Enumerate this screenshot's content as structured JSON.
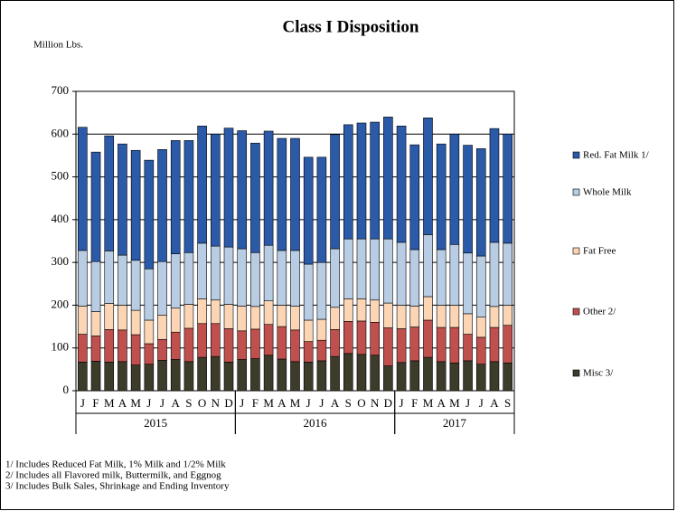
{
  "chart_data": {
    "type": "stacked-bar",
    "title": "Class I Disposition",
    "y_label": "Million Lbs.",
    "groups": [
      {
        "label": "2015",
        "categories": [
          "J",
          "F",
          "M",
          "A",
          "M",
          "J",
          "J",
          "A",
          "S",
          "O",
          "N",
          "D"
        ]
      },
      {
        "label": "2016",
        "categories": [
          "J",
          "F",
          "M",
          "A",
          "M",
          "J",
          "J",
          "A",
          "S",
          "O",
          "N",
          "D"
        ]
      },
      {
        "label": "2017",
        "categories": [
          "J",
          "F",
          "M",
          "A",
          "M",
          "J",
          "J",
          "A",
          "S"
        ]
      }
    ],
    "series": [
      {
        "name": "Misc 3/",
        "color": "#3d3b2a",
        "values": [
          67,
          69,
          67,
          68,
          60,
          62,
          71,
          73,
          68,
          78,
          80,
          67,
          73,
          75,
          83,
          74,
          68,
          67,
          70,
          80,
          87,
          85,
          83,
          58,
          66,
          70,
          78,
          68,
          65,
          70,
          62,
          68,
          65
        ]
      },
      {
        "name": "Other 2/",
        "color": "#c0504d",
        "values": [
          65,
          59,
          76,
          74,
          71,
          48,
          49,
          64,
          78,
          79,
          77,
          78,
          67,
          69,
          72,
          76,
          74,
          48,
          48,
          63,
          75,
          78,
          77,
          89,
          79,
          79,
          87,
          80,
          83,
          62,
          63,
          80,
          88
        ]
      },
      {
        "name": "Fat Free",
        "color": "#fcd5b4",
        "values": [
          66,
          57,
          61,
          58,
          57,
          55,
          57,
          56,
          56,
          58,
          55,
          57,
          58,
          53,
          55,
          50,
          56,
          50,
          49,
          52,
          53,
          52,
          52,
          58,
          55,
          49,
          55,
          52,
          52,
          48,
          47,
          49,
          47
        ]
      },
      {
        "name": "Whole Milk",
        "color": "#b8cce4",
        "values": [
          130,
          117,
          123,
          117,
          117,
          120,
          125,
          127,
          121,
          130,
          126,
          134,
          134,
          126,
          130,
          128,
          130,
          131,
          133,
          137,
          140,
          140,
          143,
          150,
          147,
          132,
          145,
          130,
          142,
          142,
          143,
          150,
          145
        ]
      },
      {
        "name": "Red. Fat Milk 1/",
        "color": "#2b5aa8",
        "values": [
          288,
          256,
          269,
          260,
          257,
          254,
          262,
          265,
          262,
          274,
          262,
          278,
          276,
          256,
          267,
          262,
          262,
          250,
          246,
          267,
          267,
          271,
          273,
          285,
          272,
          245,
          273,
          247,
          258,
          252,
          251,
          266,
          255
        ]
      }
    ],
    "ylim": [
      0,
      700
    ],
    "yticks": [
      0,
      100,
      200,
      300,
      400,
      500,
      600,
      700
    ],
    "grid": true,
    "legend": "right",
    "footnotes": [
      "1/  Includes Reduced Fat Milk, 1% Milk and 1/2% Milk",
      "2/  Includes all Flavored milk, Buttermilk, and Eggnog",
      "3/  Includes  Bulk Sales, Shrinkage and Ending Inventory"
    ]
  }
}
